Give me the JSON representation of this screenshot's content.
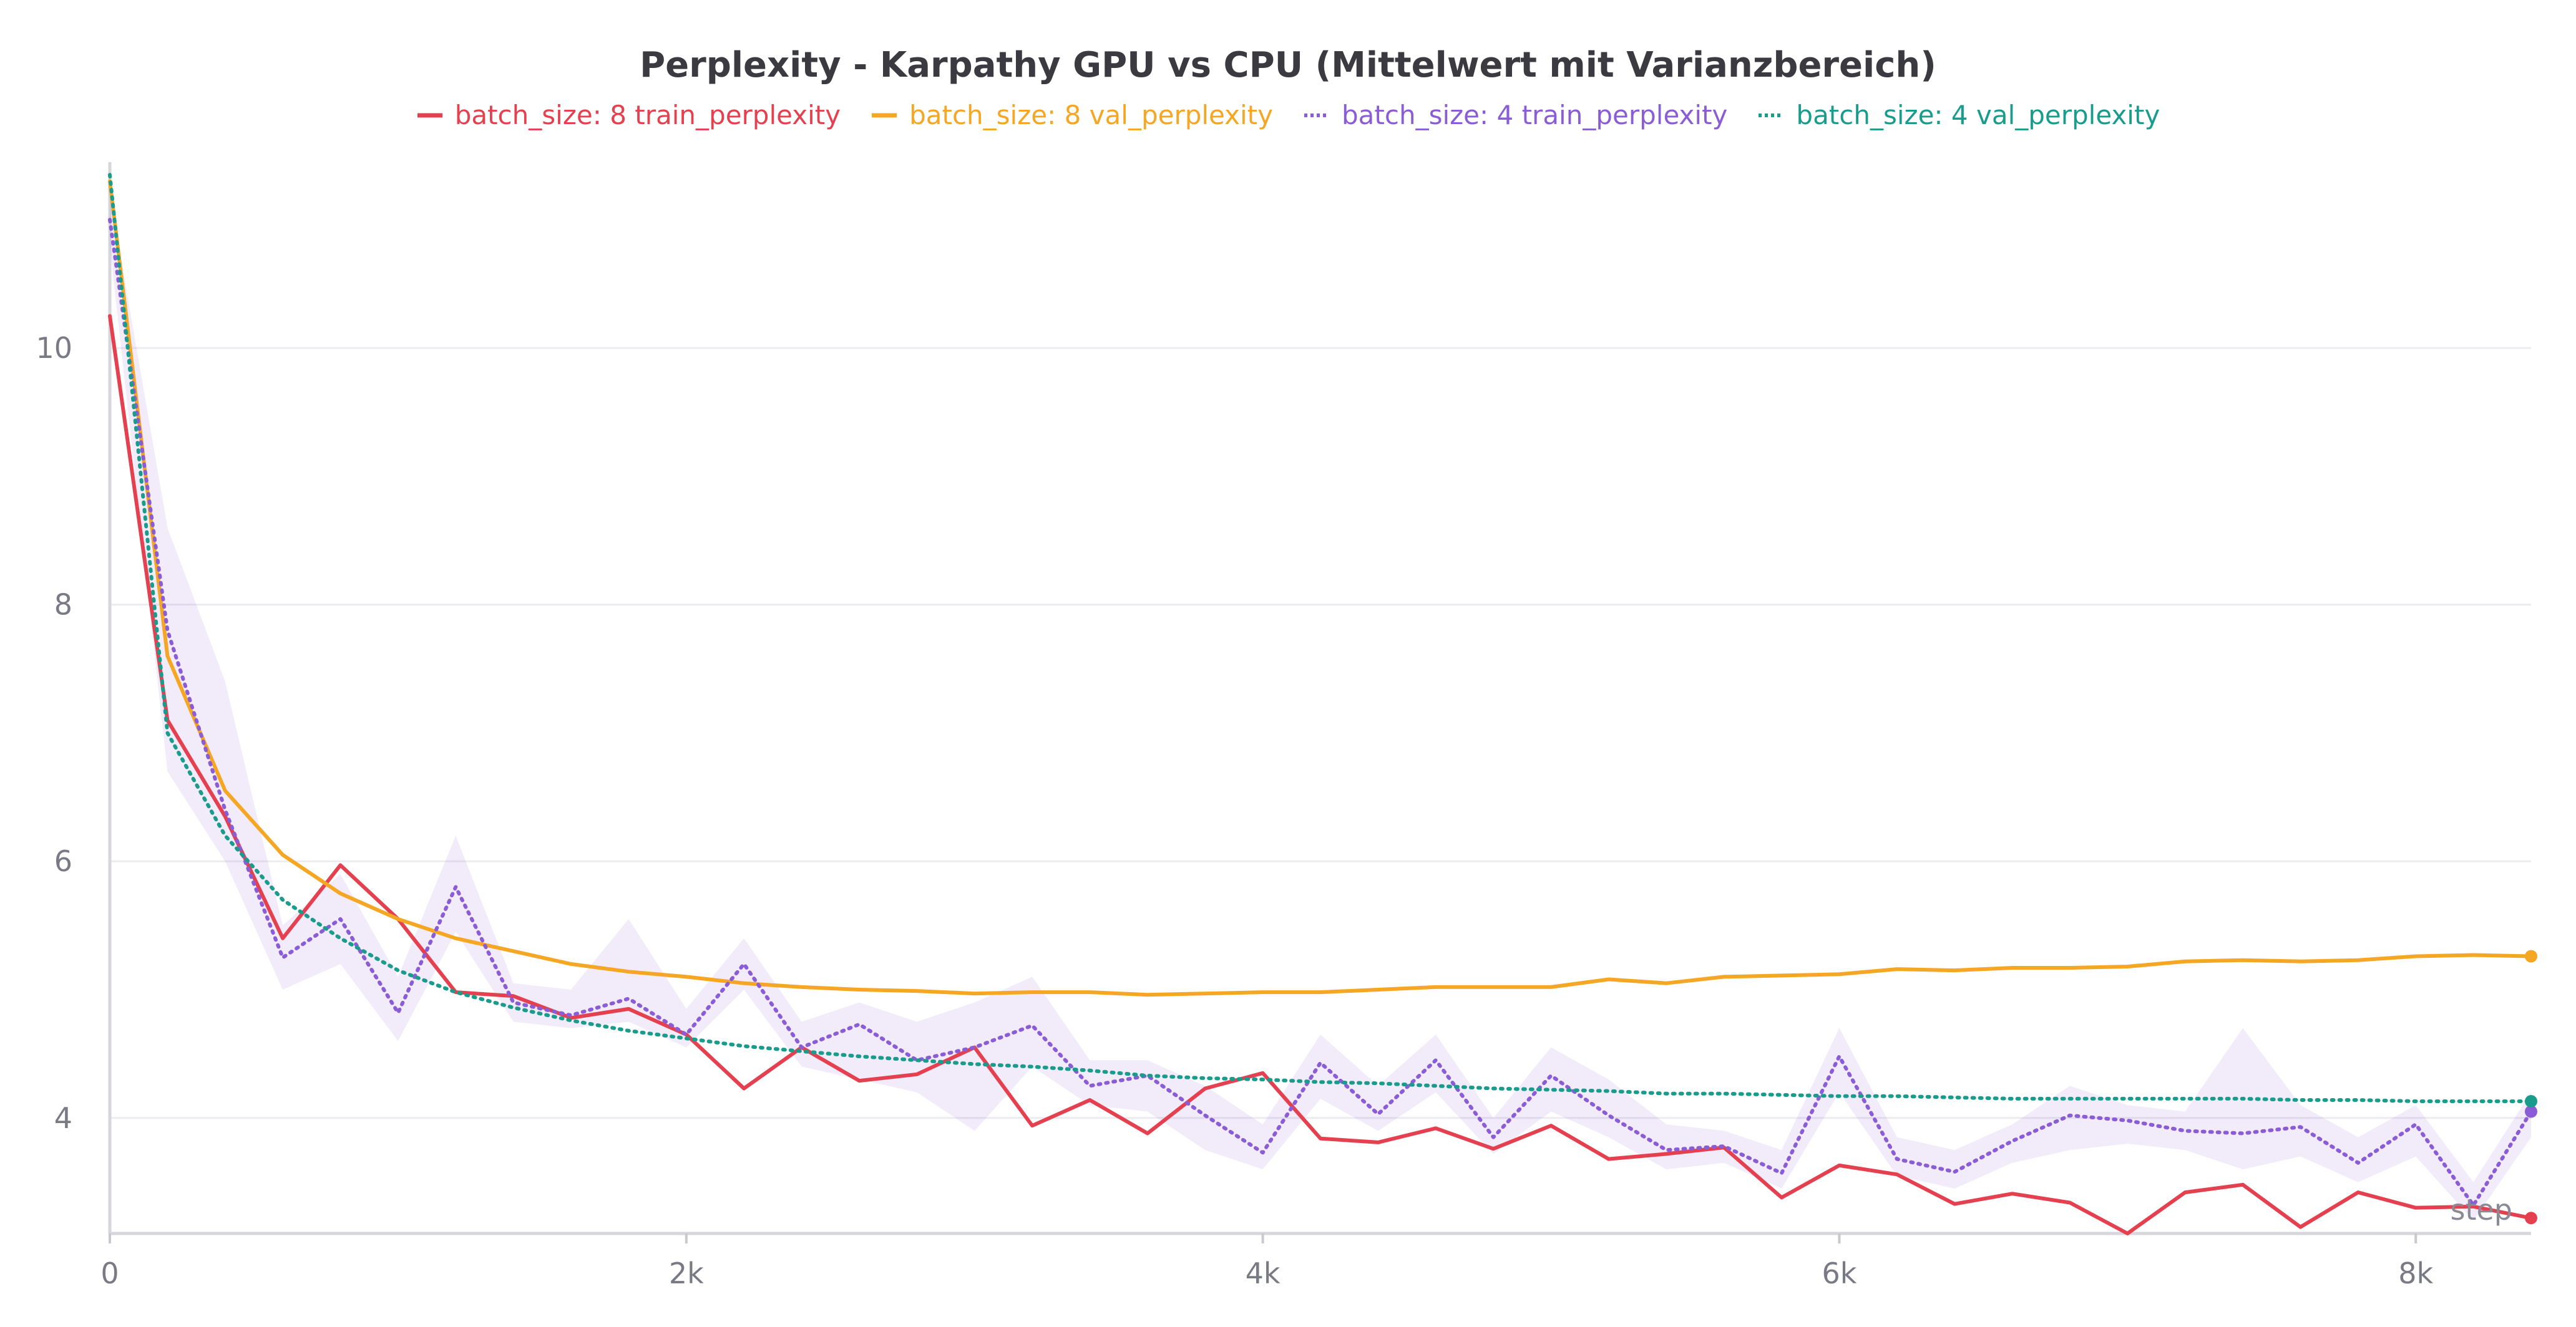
{
  "chart_data": {
    "type": "line",
    "title": "Perplexity - Karpathy GPU vs CPU (Mittelwert mit Varianzbereich)",
    "xlabel": "step",
    "ylabel": "",
    "xlim": [
      0,
      8400
    ],
    "ylim": [
      3.1,
      11.4
    ],
    "grid": true,
    "legend_position": "top-center",
    "x_ticks": [
      {
        "value": 0,
        "label": "0"
      },
      {
        "value": 2000,
        "label": "2k"
      },
      {
        "value": 4000,
        "label": "4k"
      },
      {
        "value": 6000,
        "label": "6k"
      },
      {
        "value": 8000,
        "label": "8k"
      }
    ],
    "y_ticks": [
      {
        "value": 4,
        "label": "4"
      },
      {
        "value": 6,
        "label": "6"
      },
      {
        "value": 8,
        "label": "8"
      },
      {
        "value": 10,
        "label": "10"
      }
    ],
    "series": [
      {
        "name": "batch_size: 8 train_perplexity",
        "color": "#e5404f",
        "style": "solid",
        "x": [
          0,
          200,
          400,
          600,
          800,
          1000,
          1200,
          1400,
          1600,
          1800,
          2000,
          2200,
          2400,
          2600,
          2800,
          3000,
          3200,
          3400,
          3600,
          3800,
          4000,
          4200,
          4400,
          4600,
          4800,
          5000,
          5200,
          5400,
          5600,
          5800,
          6000,
          6200,
          6400,
          6600,
          6800,
          7000,
          7200,
          7400,
          7600,
          7800,
          8000,
          8200,
          8400
        ],
        "y": [
          10.25,
          7.1,
          6.35,
          5.4,
          5.97,
          5.55,
          4.98,
          4.95,
          4.78,
          4.85,
          4.65,
          4.23,
          4.55,
          4.29,
          4.34,
          4.55,
          3.94,
          4.14,
          3.88,
          4.23,
          4.35,
          3.84,
          3.81,
          3.92,
          3.76,
          3.94,
          3.68,
          3.72,
          3.77,
          3.38,
          3.63,
          3.56,
          3.33,
          3.41,
          3.34,
          3.1,
          3.42,
          3.48,
          3.15,
          3.42,
          3.3,
          3.31,
          3.22
        ]
      },
      {
        "name": "batch_size: 8 val_perplexity",
        "color": "#f5a623",
        "style": "solid",
        "x": [
          0,
          200,
          400,
          600,
          800,
          1000,
          1200,
          1400,
          1600,
          1800,
          2000,
          2200,
          2400,
          2600,
          2800,
          3000,
          3200,
          3400,
          3600,
          3800,
          4000,
          4200,
          4400,
          4600,
          4800,
          5000,
          5200,
          5400,
          5600,
          5800,
          6000,
          6200,
          6400,
          6600,
          6800,
          7000,
          7200,
          7400,
          7600,
          7800,
          8000,
          8200,
          8400
        ],
        "y": [
          11.3,
          7.6,
          6.55,
          6.05,
          5.75,
          5.55,
          5.4,
          5.3,
          5.2,
          5.14,
          5.1,
          5.05,
          5.02,
          5.0,
          4.99,
          4.97,
          4.98,
          4.98,
          4.96,
          4.97,
          4.98,
          4.98,
          5.0,
          5.02,
          5.02,
          5.02,
          5.08,
          5.05,
          5.1,
          5.11,
          5.12,
          5.16,
          5.15,
          5.17,
          5.17,
          5.18,
          5.22,
          5.23,
          5.22,
          5.23,
          5.26,
          5.27,
          5.26
        ]
      },
      {
        "name": "batch_size: 4 train_perplexity",
        "color": "#8a5cd6",
        "style": "dotted",
        "x": [
          0,
          200,
          400,
          600,
          800,
          1000,
          1200,
          1400,
          1600,
          1800,
          2000,
          2200,
          2400,
          2600,
          2800,
          3000,
          3200,
          3400,
          3600,
          3800,
          4000,
          4200,
          4400,
          4600,
          4800,
          5000,
          5200,
          5400,
          5600,
          5800,
          6000,
          6200,
          6400,
          6600,
          6800,
          7000,
          7200,
          7400,
          7600,
          7800,
          8000,
          8200,
          8400
        ],
        "y": [
          11.0,
          7.8,
          6.4,
          5.25,
          5.55,
          4.82,
          5.8,
          4.9,
          4.8,
          4.93,
          4.65,
          5.2,
          4.55,
          4.73,
          4.45,
          4.55,
          4.72,
          4.25,
          4.33,
          4.02,
          3.73,
          4.43,
          4.03,
          4.45,
          3.85,
          4.33,
          4.02,
          3.75,
          3.78,
          3.57,
          4.48,
          3.68,
          3.58,
          3.82,
          4.02,
          3.98,
          3.9,
          3.88,
          3.93,
          3.65,
          3.95,
          3.32,
          4.05
        ],
        "band_low": [
          10.8,
          6.7,
          6.0,
          5.0,
          5.2,
          4.6,
          5.45,
          4.75,
          4.7,
          4.75,
          4.55,
          5.0,
          4.4,
          4.3,
          4.2,
          3.9,
          4.4,
          4.1,
          4.05,
          3.75,
          3.6,
          4.15,
          3.9,
          4.2,
          3.72,
          4.05,
          3.85,
          3.6,
          3.65,
          3.45,
          4.2,
          3.55,
          3.45,
          3.65,
          3.75,
          3.8,
          3.75,
          3.6,
          3.7,
          3.5,
          3.7,
          3.2,
          3.85
        ],
        "band_high": [
          11.2,
          8.6,
          7.4,
          5.5,
          5.9,
          5.1,
          6.2,
          5.05,
          5.0,
          5.55,
          4.85,
          5.4,
          4.75,
          4.9,
          4.75,
          4.9,
          5.1,
          4.45,
          4.45,
          4.25,
          3.95,
          4.65,
          4.25,
          4.65,
          4.0,
          4.55,
          4.3,
          3.95,
          3.9,
          3.75,
          4.7,
          3.85,
          3.75,
          3.95,
          4.25,
          4.1,
          4.05,
          4.7,
          4.1,
          3.85,
          4.1,
          3.5,
          4.2
        ]
      },
      {
        "name": "batch_size: 4 val_perplexity",
        "color": "#1a9c8c",
        "style": "dotted",
        "x": [
          0,
          200,
          400,
          600,
          800,
          1000,
          1200,
          1400,
          1600,
          1800,
          2000,
          2200,
          2400,
          2600,
          2800,
          3000,
          3200,
          3400,
          3600,
          3800,
          4000,
          4200,
          4400,
          4600,
          4800,
          5000,
          5200,
          5400,
          5600,
          5800,
          6000,
          6200,
          6400,
          6600,
          6800,
          7000,
          7200,
          7400,
          7600,
          7800,
          8000,
          8200,
          8400
        ],
        "y": [
          11.35,
          7.0,
          6.2,
          5.7,
          5.4,
          5.15,
          4.98,
          4.86,
          4.76,
          4.68,
          4.62,
          4.56,
          4.52,
          4.48,
          4.45,
          4.42,
          4.4,
          4.37,
          4.33,
          4.31,
          4.3,
          4.28,
          4.27,
          4.25,
          4.23,
          4.22,
          4.21,
          4.19,
          4.19,
          4.18,
          4.17,
          4.17,
          4.16,
          4.15,
          4.15,
          4.15,
          4.15,
          4.15,
          4.14,
          4.14,
          4.13,
          4.13,
          4.13
        ]
      }
    ]
  }
}
